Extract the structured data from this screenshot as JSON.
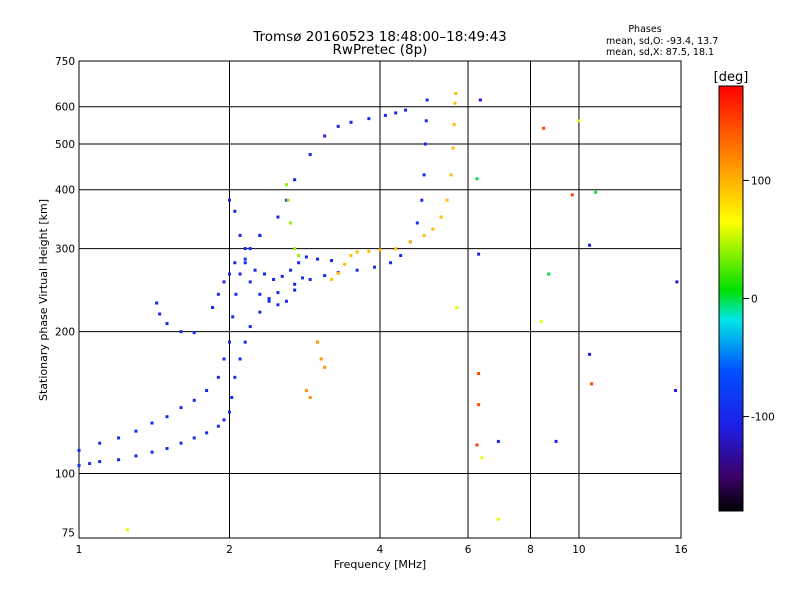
{
  "chart_data": {
    "type": "scatter",
    "title": "Tromsø 20160523 18:48:00–18:49:43",
    "subtitle": "RwPretec (8p)",
    "xlabel": "Frequency [MHz]",
    "ylabel": "Stationary phase Virtual Height [km]",
    "x_scale": "log",
    "y_scale": "log",
    "xlim": [
      1,
      16
    ],
    "ylim": [
      73,
      750
    ],
    "x_ticks": [
      1,
      2,
      4,
      6,
      8,
      10,
      16
    ],
    "y_ticks": [
      75,
      100,
      200,
      300,
      400,
      500,
      600,
      750
    ],
    "grid": true,
    "phase_info": {
      "title": "Phases",
      "line_o": "mean, sd,O:  -93.4, 13.7",
      "line_x": "mean, sd,X:  87.5, 18.1"
    },
    "colorbar": {
      "label": "[deg]",
      "range": [
        -180,
        180
      ],
      "ticks": [
        100,
        0,
        -100
      ],
      "colormap": "rainbow"
    },
    "traces": [
      {
        "phase": -95,
        "points": [
          [
            1.0,
            104
          ],
          [
            1.05,
            105
          ],
          [
            1.1,
            106
          ],
          [
            1.2,
            107
          ],
          [
            1.3,
            109
          ],
          [
            1.4,
            111
          ],
          [
            1.5,
            113
          ],
          [
            1.6,
            116
          ],
          [
            1.7,
            119
          ],
          [
            1.8,
            122
          ],
          [
            1.9,
            126
          ],
          [
            1.95,
            130
          ],
          [
            2.0,
            135
          ],
          [
            2.02,
            145
          ],
          [
            2.05,
            160
          ],
          [
            2.1,
            175
          ],
          [
            2.15,
            190
          ],
          [
            2.2,
            205
          ],
          [
            2.3,
            220
          ],
          [
            2.4,
            232
          ],
          [
            2.5,
            242
          ],
          [
            2.7,
            252
          ],
          [
            2.9,
            258
          ],
          [
            3.1,
            263
          ],
          [
            3.3,
            267
          ],
          [
            3.6,
            270
          ],
          [
            3.9,
            274
          ],
          [
            4.2,
            280
          ],
          [
            4.4,
            290
          ],
          [
            4.6,
            310
          ],
          [
            4.75,
            340
          ],
          [
            4.85,
            380
          ],
          [
            4.9,
            430
          ],
          [
            4.93,
            500
          ],
          [
            4.95,
            560
          ],
          [
            4.97,
            620
          ]
        ]
      },
      {
        "phase": -98,
        "points": [
          [
            1.0,
            112
          ],
          [
            1.1,
            116
          ],
          [
            1.2,
            119
          ],
          [
            1.3,
            123
          ],
          [
            1.4,
            128
          ],
          [
            1.5,
            132
          ],
          [
            1.6,
            138
          ],
          [
            1.7,
            143
          ],
          [
            1.8,
            150
          ],
          [
            1.9,
            160
          ],
          [
            1.95,
            175
          ],
          [
            2.0,
            190
          ],
          [
            2.03,
            215
          ],
          [
            2.06,
            240
          ],
          [
            2.1,
            265
          ],
          [
            2.15,
            285
          ],
          [
            2.2,
            300
          ],
          [
            2.3,
            320
          ]
        ]
      },
      {
        "phase": -100,
        "points": [
          [
            1.43,
            230
          ],
          [
            1.45,
            218
          ],
          [
            1.5,
            208
          ],
          [
            1.6,
            200
          ],
          [
            1.7,
            199
          ]
        ]
      },
      {
        "phase": -100,
        "points": [
          [
            1.85,
            225
          ],
          [
            1.9,
            240
          ],
          [
            1.95,
            255
          ],
          [
            2.0,
            265
          ],
          [
            2.05,
            280
          ],
          [
            2.15,
            300
          ],
          [
            2.3,
            320
          ],
          [
            2.5,
            350
          ],
          [
            2.6,
            380
          ],
          [
            2.7,
            420
          ],
          [
            2.9,
            475
          ],
          [
            3.1,
            520
          ],
          [
            3.3,
            545
          ],
          [
            3.5,
            556
          ],
          [
            3.8,
            566
          ],
          [
            4.1,
            575
          ],
          [
            4.3,
            582
          ],
          [
            4.5,
            590
          ]
        ]
      },
      {
        "phase": -97,
        "points": [
          [
            2.0,
            380
          ],
          [
            2.05,
            360
          ],
          [
            2.1,
            320
          ],
          [
            2.15,
            280
          ],
          [
            2.2,
            255
          ],
          [
            2.3,
            240
          ],
          [
            2.4,
            235
          ],
          [
            2.5,
            228
          ],
          [
            2.6,
            232
          ],
          [
            2.7,
            245
          ],
          [
            2.8,
            260
          ]
        ]
      },
      {
        "phase": -102,
        "points": [
          [
            2.25,
            270
          ],
          [
            2.35,
            265
          ],
          [
            2.45,
            258
          ],
          [
            2.55,
            262
          ],
          [
            2.65,
            270
          ],
          [
            2.75,
            280
          ],
          [
            2.85,
            288
          ],
          [
            3.0,
            285
          ],
          [
            3.2,
            283
          ]
        ]
      },
      {
        "phase": 40,
        "points": [
          [
            2.6,
            410
          ],
          [
            2.62,
            380
          ],
          [
            2.65,
            340
          ],
          [
            2.7,
            300
          ],
          [
            2.75,
            290
          ]
        ]
      },
      {
        "phase": 95,
        "points": [
          [
            3.2,
            258
          ],
          [
            3.3,
            266
          ],
          [
            3.4,
            278
          ],
          [
            3.5,
            290
          ],
          [
            3.6,
            295
          ],
          [
            3.8,
            296
          ],
          [
            4.0,
            298
          ],
          [
            4.3,
            300
          ],
          [
            4.6,
            310
          ],
          [
            4.9,
            320
          ],
          [
            5.1,
            330
          ],
          [
            5.3,
            350
          ],
          [
            5.45,
            380
          ],
          [
            5.55,
            430
          ],
          [
            5.6,
            490
          ],
          [
            5.63,
            550
          ],
          [
            5.65,
            610
          ],
          [
            5.67,
            640
          ]
        ]
      },
      {
        "phase": 115,
        "points": [
          [
            3.0,
            190
          ],
          [
            3.05,
            175
          ],
          [
            3.1,
            168
          ],
          [
            2.85,
            150
          ],
          [
            2.9,
            145
          ]
        ]
      },
      {
        "phase": 150,
        "points": [
          [
            6.3,
            163
          ],
          [
            6.3,
            140
          ],
          [
            6.25,
            115
          ],
          [
            8.5,
            540
          ],
          [
            9.7,
            390
          ],
          [
            10.6,
            155
          ]
        ]
      },
      {
        "phase": 0,
        "points": [
          [
            6.25,
            422
          ],
          [
            8.7,
            265
          ],
          [
            10.8,
            395
          ]
        ]
      },
      {
        "phase": -110,
        "points": [
          [
            6.3,
            292
          ],
          [
            10.5,
            305
          ],
          [
            10.5,
            179
          ],
          [
            9.0,
            117
          ],
          [
            15.6,
            150
          ],
          [
            15.7,
            255
          ],
          [
            6.9,
            117
          ],
          [
            6.35,
            620
          ]
        ]
      },
      {
        "phase": 60,
        "points": [
          [
            6.9,
            80
          ],
          [
            6.4,
            108
          ],
          [
            8.4,
            210
          ],
          [
            10.0,
            560
          ],
          [
            5.7,
            225
          ],
          [
            1.25,
            76
          ]
        ]
      }
    ]
  }
}
